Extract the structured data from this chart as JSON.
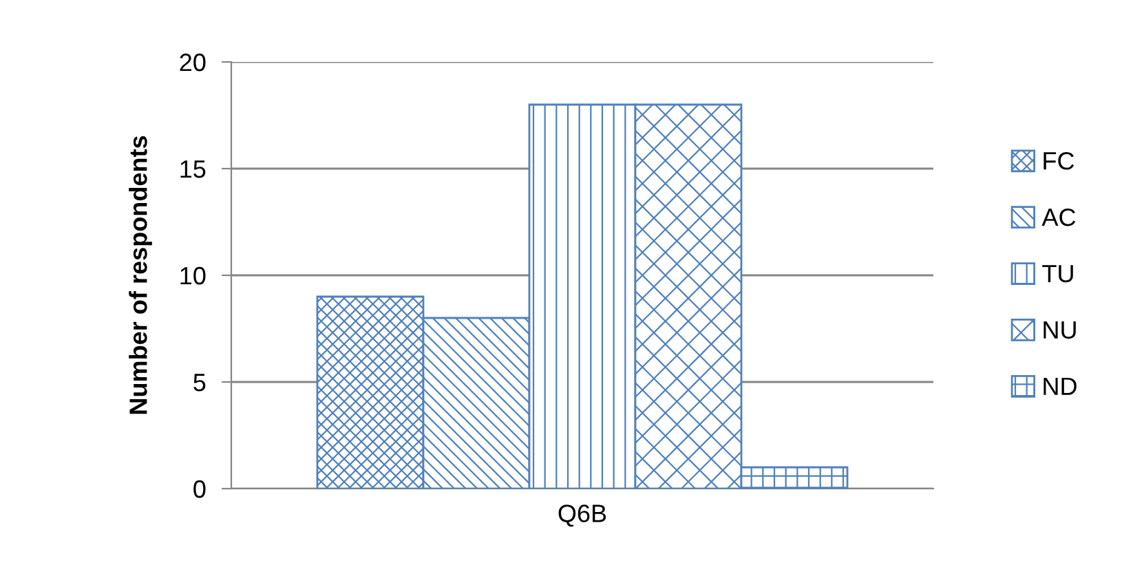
{
  "chart_data": {
    "type": "bar",
    "ylabel": "Number of respondents",
    "categories": [
      "Q6B"
    ],
    "series": [
      {
        "name": "FC",
        "color": "#4f81bd",
        "values": [
          9
        ]
      },
      {
        "name": "AC",
        "color": "#4f81bd",
        "values": [
          8
        ]
      },
      {
        "name": "TU",
        "color": "#4f81bd",
        "values": [
          18
        ]
      },
      {
        "name": "NU",
        "color": "#4f81bd",
        "values": [
          18
        ]
      },
      {
        "name": "ND",
        "color": "#4f81bd",
        "values": [
          1
        ]
      }
    ],
    "ylim": [
      0,
      20
    ],
    "yticks": [
      0,
      5,
      10,
      15,
      20
    ],
    "grid": "y",
    "legend": "right"
  }
}
